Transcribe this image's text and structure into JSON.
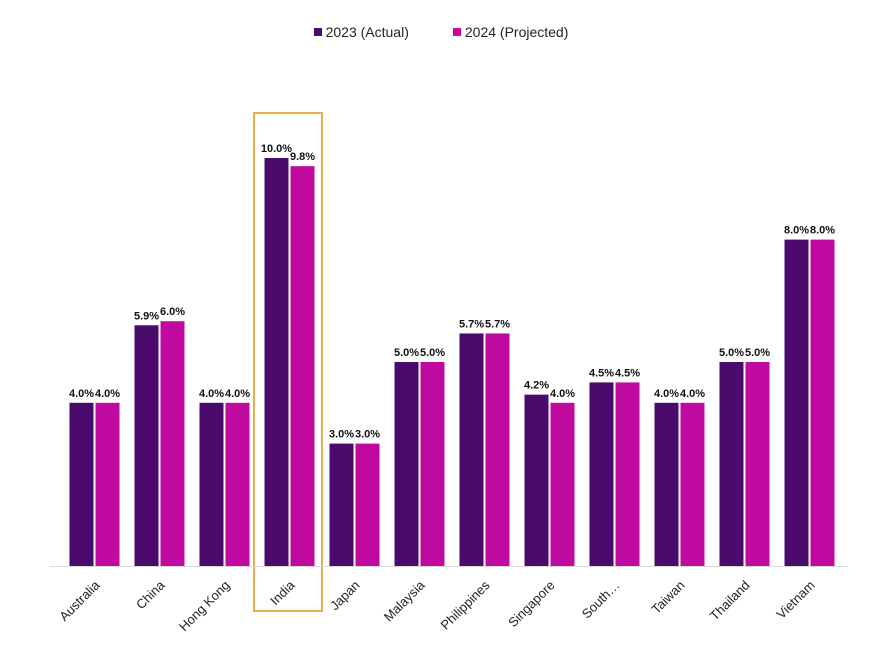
{
  "chart_data": {
    "type": "bar",
    "categories": [
      "Australia",
      "China",
      "Hong Kong",
      "India",
      "Japan",
      "Malaysia",
      "Philippines",
      "Singapore",
      "South…",
      "Taiwan",
      "Thailand",
      "Vietnam"
    ],
    "series": [
      {
        "name": "2023 (Actual)",
        "color": "#4a0a6b",
        "values": [
          4.0,
          5.9,
          4.0,
          10.0,
          3.0,
          5.0,
          5.7,
          4.2,
          4.5,
          4.0,
          5.0,
          8.0
        ],
        "labels": [
          "4.0%",
          "5.9%",
          "4.0%",
          "10.0%",
          "3.0%",
          "5.0%",
          "5.7%",
          "4.2%",
          "4.5%",
          "4.0%",
          "5.0%",
          "8.0%"
        ]
      },
      {
        "name": "2024 (Projected)",
        "color": "#c0099e",
        "values": [
          4.0,
          6.0,
          4.0,
          9.8,
          3.0,
          5.0,
          5.7,
          4.0,
          4.5,
          4.0,
          5.0,
          8.0
        ],
        "labels": [
          "4.0%",
          "6.0%",
          "4.0%",
          "9.8%",
          "3.0%",
          "5.0%",
          "5.7%",
          "4.0%",
          "4.5%",
          "4.0%",
          "5.0%",
          "8.0%"
        ]
      }
    ],
    "ylim": [
      0,
      10
    ],
    "legend_position": "top-center",
    "grid": false,
    "highlight": {
      "category": "India",
      "color": "#e8a33d"
    }
  }
}
